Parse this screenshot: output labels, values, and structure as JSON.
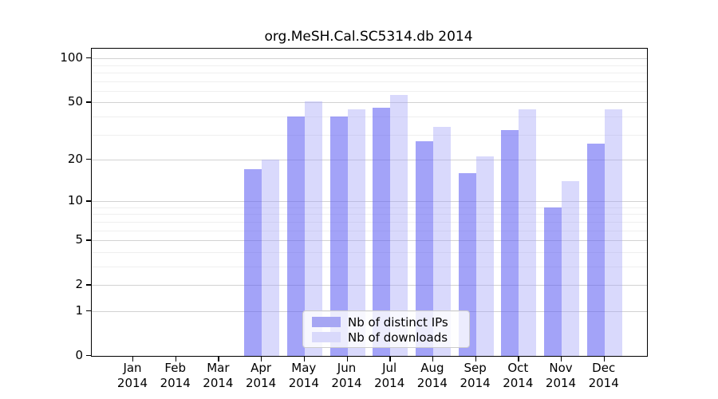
{
  "chart_data": {
    "type": "bar",
    "title": "org.MeSH.Cal.SC5314.db 2014",
    "categories": [
      "Jan",
      "Feb",
      "Mar",
      "Apr",
      "May",
      "Jun",
      "Jul",
      "Aug",
      "Sep",
      "Oct",
      "Nov",
      "Dec"
    ],
    "year_label": "2014",
    "series": [
      {
        "key": "distinct-ips",
        "name": "Nb of distinct IPs",
        "legend_color": "#a6a6f3",
        "bar_color": "rgba(97,97,243,0.58)",
        "values": [
          0,
          0,
          0,
          17,
          40,
          40,
          46,
          27,
          16,
          32,
          9,
          26
        ]
      },
      {
        "key": "downloads",
        "name": "Nb of downloads",
        "legend_color": "#d9d9fb",
        "bar_color": "rgba(160,160,248,0.40)",
        "values": [
          0,
          0,
          0,
          20,
          51,
          45,
          56,
          34,
          21,
          45,
          14,
          45
        ]
      }
    ],
    "y_axis": {
      "scale": "log1p",
      "ylim": [
        0,
        100
      ],
      "major_ticks": [
        0,
        1,
        2,
        5,
        10,
        20,
        50,
        100
      ],
      "minor_gridlines": [
        3,
        4,
        6,
        7,
        8,
        9,
        30,
        40,
        60,
        70,
        80,
        90
      ]
    },
    "grid": true,
    "legend_position": "bottom-center"
  }
}
